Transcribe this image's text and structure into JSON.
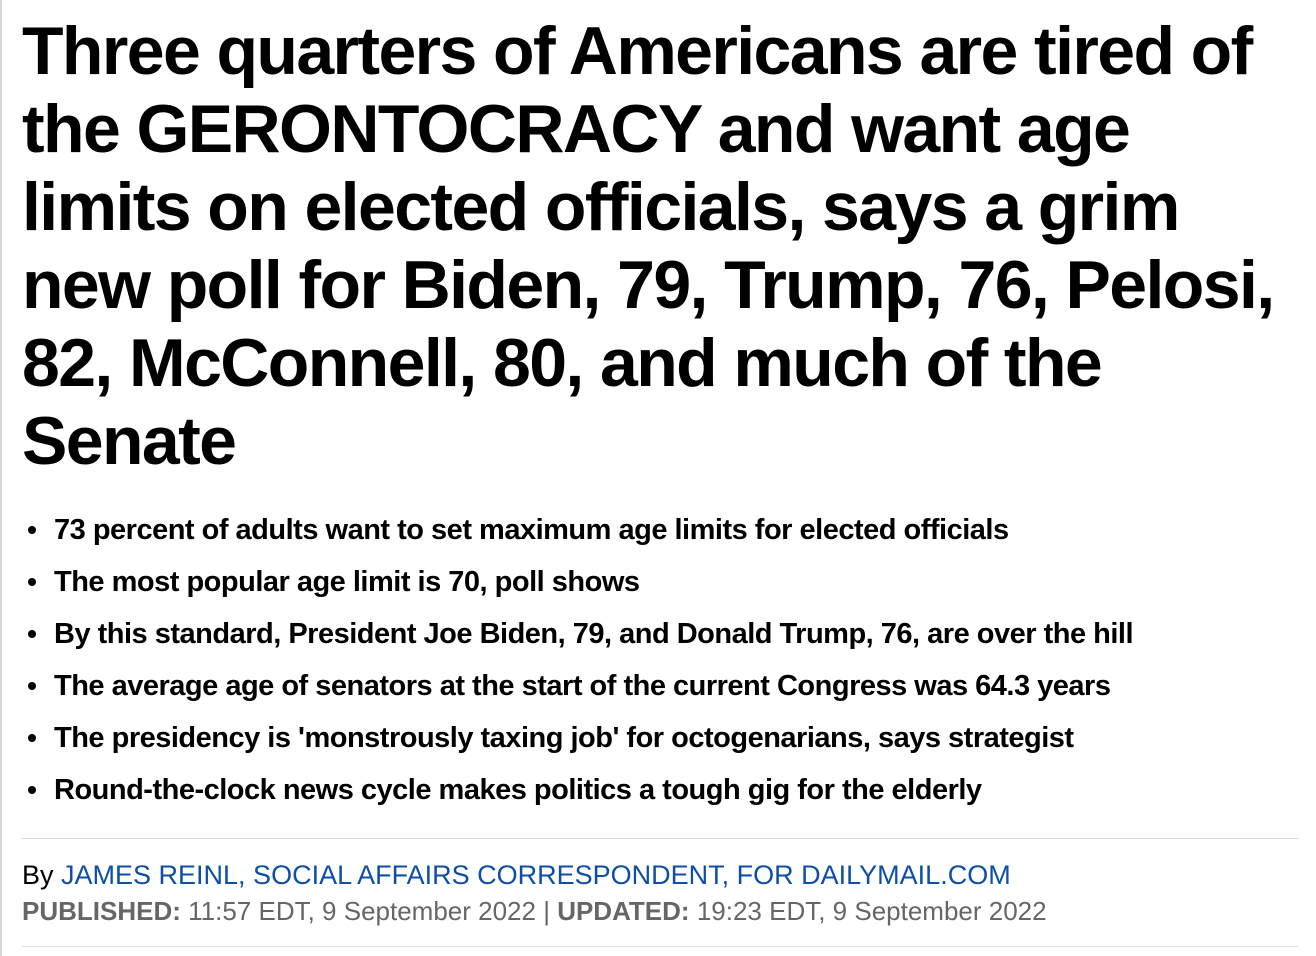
{
  "article": {
    "headline": "Three quarters of Americans are tired of the GERONTOCRACY and want age limits on elected officials, says a grim new poll for Biden, 79, Trump, 76, Pelosi, 82, McConnell, 80, and much of the Senate",
    "bullets": [
      "73 percent of adults want to set maximum age limits for elected officials",
      "The most popular age limit is 70, poll shows",
      "By this standard, President Joe Biden, 79, and Donald Trump, 76, are over the hill",
      "The average age of senators at the start of the current Congress was 64.3 years",
      "The presidency is 'monstrously taxing job' for octogenarians, says strategist",
      "Round-the-clock news cycle makes politics a tough gig for the elderly"
    ],
    "byline": {
      "prefix": "By ",
      "author": "JAMES REINL, SOCIAL AFFAIRS CORRESPONDENT, FOR DAILYMAIL.COM"
    },
    "dateline": {
      "published_label": "PUBLISHED:",
      "published_value": " 11:57 EDT, 9 September 2022",
      "separator": " | ",
      "updated_label": "UPDATED:",
      "updated_value": " 19:23 EDT, 9 September 2022"
    }
  },
  "colors": {
    "author_link": "#0d4fa8",
    "dateline_text": "#666666",
    "divider": "#dcdcdc"
  }
}
